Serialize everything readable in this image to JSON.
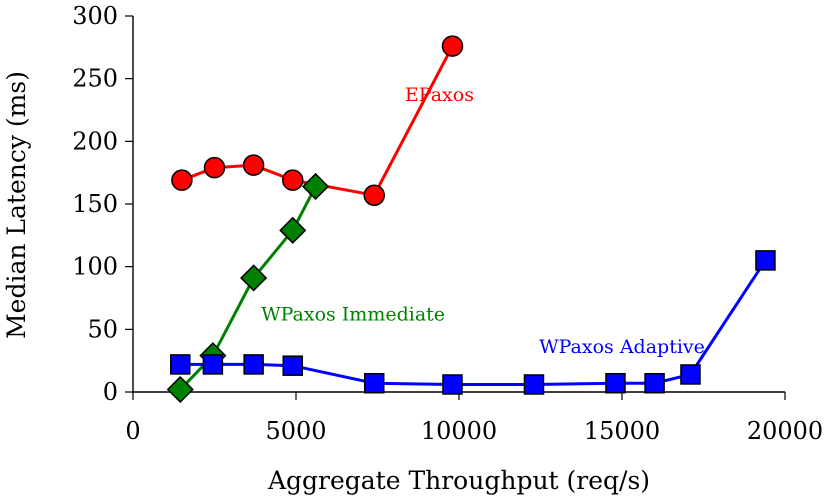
{
  "chart_data": {
    "type": "line",
    "title": "",
    "xlabel": "Aggregate Throughput (req/s)",
    "ylabel": "Median Latency (ms)",
    "xlim": [
      0,
      20000
    ],
    "ylim": [
      0,
      300
    ],
    "xticks": [
      0,
      5000,
      10000,
      15000,
      20000
    ],
    "yticks": [
      0,
      50,
      100,
      150,
      200,
      250,
      300
    ],
    "grid": false,
    "legend": "none (series labeled inline)",
    "series": [
      {
        "name": "EPaxos",
        "color": "#ff0000",
        "marker": "circle",
        "label_pos": [
          9400,
          232
        ],
        "points": [
          [
            1500,
            169
          ],
          [
            2500,
            179
          ],
          [
            3700,
            181
          ],
          [
            4900,
            169
          ],
          [
            7400,
            157
          ],
          [
            9800,
            276
          ]
        ]
      },
      {
        "name": "WPaxos Immediate",
        "color": "#008000",
        "marker": "diamond",
        "label_pos": [
          6750,
          57
        ],
        "points": [
          [
            1450,
            2
          ],
          [
            2450,
            29
          ],
          [
            3700,
            91
          ],
          [
            4900,
            129
          ],
          [
            5600,
            164
          ]
        ]
      },
      {
        "name": "WPaxos Adaptive",
        "color": "#0000ff",
        "marker": "square",
        "label_pos": [
          15000,
          31
        ],
        "points": [
          [
            1450,
            22
          ],
          [
            2450,
            22
          ],
          [
            3700,
            22
          ],
          [
            4900,
            21
          ],
          [
            7400,
            7
          ],
          [
            9800,
            6
          ],
          [
            12300,
            6
          ],
          [
            14800,
            7
          ],
          [
            16000,
            7
          ],
          [
            17100,
            14
          ],
          [
            19400,
            105
          ]
        ]
      }
    ]
  }
}
